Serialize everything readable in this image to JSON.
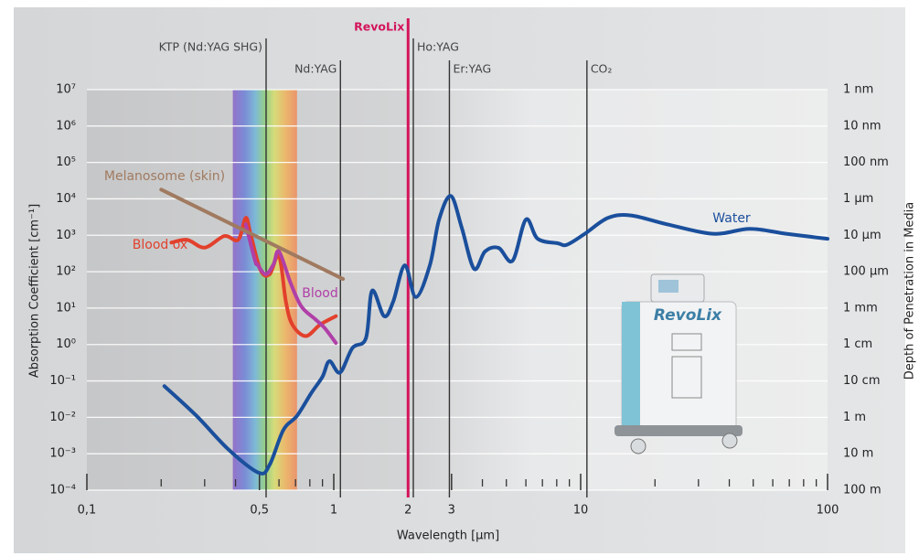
{
  "chart_data": {
    "type": "line",
    "xlabel": "Wavelength [µm]",
    "ylabel": "Absorption Coefficient [cm⁻¹]",
    "y2label": "Depth of Penetration in Media",
    "xscale": "log",
    "yscale": "log",
    "grid": true,
    "xlim": [
      0.1,
      100
    ],
    "xticks": [
      {
        "value": 0.1,
        "label": "0,1"
      },
      {
        "value": 0.5,
        "label": "0,5"
      },
      1,
      2,
      3,
      10,
      100
    ],
    "xminorticks": [
      0.2,
      0.3,
      0.4,
      0.6,
      0.7,
      0.8,
      0.9,
      4,
      5,
      6,
      7,
      8,
      9,
      20,
      30,
      40,
      50,
      60,
      70,
      80,
      90
    ],
    "ylim": [
      0.0001,
      10000000
    ],
    "yticks": [
      {
        "value": 10000000,
        "label": "10⁷"
      },
      {
        "value": 1000000,
        "label": "10⁶"
      },
      {
        "value": 100000,
        "label": "10⁵"
      },
      {
        "value": 10000,
        "label": "10⁴"
      },
      {
        "value": 1000,
        "label": "10³"
      },
      {
        "value": 100,
        "label": "10²"
      },
      {
        "value": 10,
        "label": "10¹"
      },
      {
        "value": 1,
        "label": "10⁰"
      },
      {
        "value": 0.1,
        "label": "10⁻¹"
      },
      {
        "value": 0.01,
        "label": "10⁻²"
      },
      {
        "value": 0.001,
        "label": "10⁻³"
      },
      {
        "value": 0.0001,
        "label": "10⁻⁴"
      }
    ],
    "y2lim": [
      100,
      1e-09
    ],
    "y2ticks": [
      {
        "value": 1e-09,
        "label": "1 nm"
      },
      {
        "value": 1e-08,
        "label": "10 nm"
      },
      {
        "value": 1e-07,
        "label": "100 nm"
      },
      {
        "value": 1e-06,
        "label": "1 µm"
      },
      {
        "value": 1e-05,
        "label": "10 µm"
      },
      {
        "value": 0.0001,
        "label": "100 µm"
      },
      {
        "value": 0.001,
        "label": "1 mm"
      },
      {
        "value": 0.01,
        "label": "1 cm"
      },
      {
        "value": 0.1,
        "label": "10 cm"
      },
      {
        "value": 1,
        "label": "1 m"
      },
      {
        "value": 10,
        "label": "10 m"
      },
      {
        "value": 100,
        "label": "100 m"
      }
    ],
    "visible_range": [
      0.39,
      0.71
    ],
    "lasers": [
      {
        "name": "KTP (Nd:YAG SHG)",
        "wavelength": 0.532,
        "color": "#333333"
      },
      {
        "name": "Nd:YAG",
        "wavelength": 1.064,
        "color": "#333333"
      },
      {
        "name": "RevoLix",
        "wavelength": 2.0,
        "color": "#d4145a"
      },
      {
        "name": "Ho:YAG",
        "wavelength": 2.1,
        "color": "#333333"
      },
      {
        "name": "Er:YAG",
        "wavelength": 2.94,
        "color": "#333333"
      },
      {
        "name": "CO₂",
        "wavelength": 10.6,
        "color": "#333333"
      }
    ],
    "series": [
      {
        "name": "Water",
        "color": "#1a4f9c",
        "x": [
          0.206,
          0.278,
          0.375,
          0.497,
          0.55,
          0.625,
          0.71,
          0.81,
          0.9,
          0.96,
          1.06,
          1.19,
          1.35,
          1.43,
          1.6,
          1.74,
          1.94,
          2.15,
          2.45,
          2.67,
          2.98,
          3.3,
          3.7,
          4.1,
          4.65,
          5.3,
          6.0,
          6.7,
          8.1,
          8.8,
          10.4,
          12.9,
          16,
          22.4,
          34.4,
          48.5,
          68,
          100
        ],
        "values": [
          0.072,
          0.011,
          0.0013,
          0.0003,
          0.0005,
          0.0045,
          0.011,
          0.046,
          0.13,
          0.35,
          0.17,
          0.8,
          1.5,
          30,
          6,
          15,
          150,
          20,
          150,
          2700,
          12000,
          1600,
          120,
          360,
          450,
          200,
          2700,
          800,
          600,
          550,
          1100,
          3000,
          3500,
          2000,
          1100,
          1500,
          1100,
          800
        ]
      },
      {
        "name": "Blood ox",
        "color": "#e2402c",
        "x": [
          0.22,
          0.255,
          0.3,
          0.36,
          0.41,
          0.44,
          0.46,
          0.505,
          0.55,
          0.6,
          0.64,
          0.68,
          0.77,
          0.88,
          1.02
        ],
        "values": [
          630,
          750,
          460,
          950,
          750,
          3000,
          1100,
          110,
          85,
          270,
          15,
          3.5,
          1.7,
          3.5,
          6
        ]
      },
      {
        "name": "Blood",
        "color": "#b03fa8",
        "x": [
          0.44,
          0.48,
          0.49,
          0.53,
          0.57,
          0.6,
          0.67,
          0.74,
          0.84,
          0.92,
          1.02
        ],
        "values": [
          2000,
          200,
          160,
          85,
          160,
          360,
          47,
          11,
          5,
          2.8,
          1.1
        ]
      },
      {
        "name": "Melanosome (skin)",
        "color": "#a07a60",
        "x": [
          0.2,
          1.09
        ],
        "values": [
          18000,
          63
        ]
      }
    ],
    "device_label": "RevoLix"
  }
}
